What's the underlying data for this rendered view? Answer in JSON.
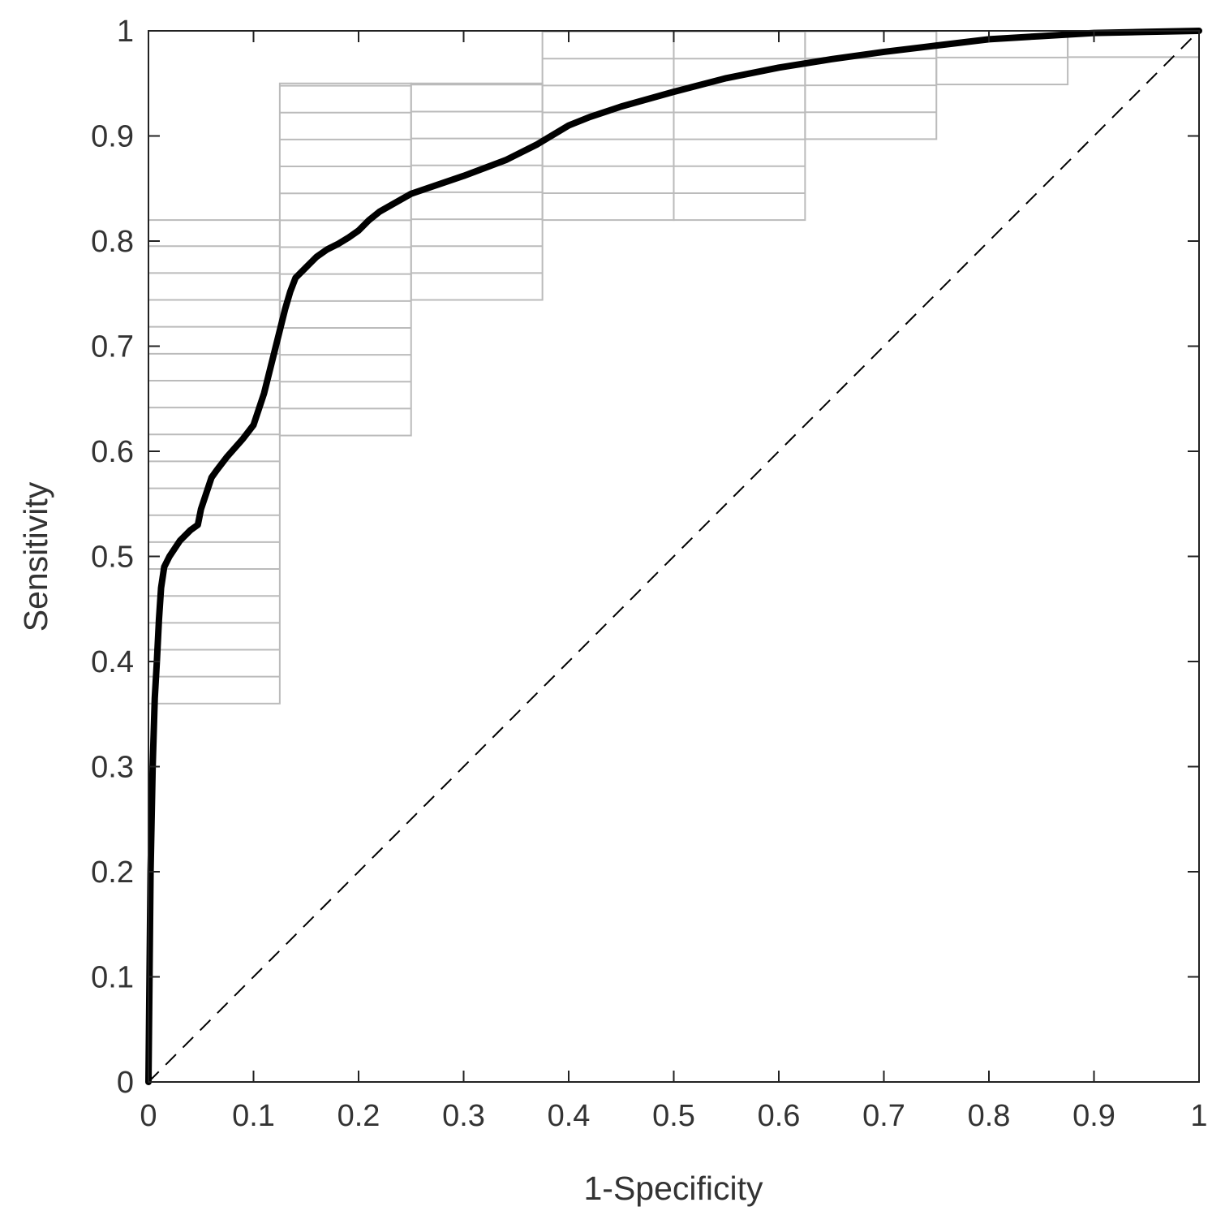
{
  "chart_data": {
    "type": "line",
    "title": "",
    "xlabel": "1-Specificity",
    "ylabel": "Sensitivity",
    "xlim": [
      0,
      1
    ],
    "ylim": [
      0,
      1
    ],
    "x_ticks": [
      "0",
      "0.1",
      "0.2",
      "0.3",
      "0.4",
      "0.5",
      "0.6",
      "0.7",
      "0.8",
      "0.9",
      "1"
    ],
    "y_ticks": [
      "0",
      "0.1",
      "0.2",
      "0.3",
      "0.4",
      "0.5",
      "0.6",
      "0.7",
      "0.8",
      "0.9",
      "1"
    ],
    "grid": false,
    "legend": "none",
    "colors": {
      "roc": "#000000",
      "reference": "#000000",
      "boxes": "#bbbbbb",
      "axis": "#222222",
      "text": "#333333"
    },
    "series": [
      {
        "style": "solid-thick",
        "x": [
          0,
          0.001,
          0.002,
          0.004,
          0.006,
          0.008,
          0.01,
          0.012,
          0.015,
          0.02,
          0.03,
          0.04,
          0.047,
          0.05,
          0.055,
          0.06,
          0.065,
          0.075,
          0.09,
          0.1,
          0.105,
          0.11,
          0.115,
          0.12,
          0.125,
          0.13,
          0.135,
          0.14,
          0.15,
          0.16,
          0.17,
          0.18,
          0.19,
          0.2,
          0.21,
          0.22,
          0.25,
          0.3,
          0.34,
          0.37,
          0.4,
          0.42,
          0.45,
          0.5,
          0.55,
          0.6,
          0.65,
          0.7,
          0.75,
          0.8,
          0.85,
          0.9,
          0.95,
          1.0
        ],
        "y": [
          0,
          0.1,
          0.2,
          0.3,
          0.365,
          0.4,
          0.44,
          0.47,
          0.49,
          0.5,
          0.515,
          0.525,
          0.53,
          0.545,
          0.56,
          0.575,
          0.582,
          0.595,
          0.612,
          0.625,
          0.64,
          0.655,
          0.675,
          0.695,
          0.715,
          0.735,
          0.752,
          0.765,
          0.775,
          0.785,
          0.792,
          0.797,
          0.803,
          0.81,
          0.82,
          0.828,
          0.845,
          0.862,
          0.877,
          0.892,
          0.91,
          0.918,
          0.928,
          0.942,
          0.955,
          0.965,
          0.973,
          0.98,
          0.986,
          0.992,
          0.995,
          0.998,
          0.999,
          1.0
        ]
      },
      {
        "style": "dashed",
        "x": [
          0,
          1
        ],
        "y": [
          0,
          1
        ]
      }
    ],
    "boxes": {
      "x_edges": [
        0,
        0.125,
        0.25,
        0.375,
        0.5,
        0.625,
        0.75,
        0.875,
        1.0
      ],
      "sensitivity_ranges": [
        [
          0.36,
          0.82
        ],
        [
          0.615,
          0.95
        ],
        [
          0.744,
          0.95
        ],
        [
          0.82,
          1.0
        ],
        [
          0.82,
          1.0
        ],
        [
          0.897,
          1.0
        ],
        [
          0.949,
          1.0
        ],
        [
          0.975,
          1.0
        ]
      ],
      "step": 0.0256
    }
  }
}
